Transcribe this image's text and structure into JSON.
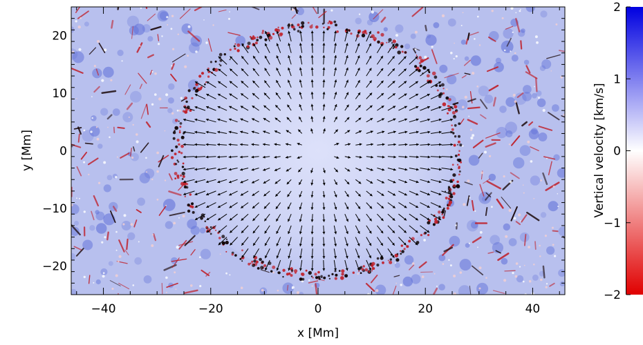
{
  "chart_data": {
    "type": "heatmap",
    "title": "",
    "xlabel": "x [Mm]",
    "ylabel": "y [Mm]",
    "xlim": [
      -46,
      46
    ],
    "ylim": [
      -25,
      25
    ],
    "x_ticks": [
      -40,
      -20,
      0,
      20,
      40
    ],
    "y_ticks": [
      -20,
      -10,
      0,
      10,
      20
    ],
    "x_tick_labels": [
      "−40",
      "−20",
      "0",
      "20",
      "40"
    ],
    "y_tick_labels": [
      "−20",
      "−10",
      "0",
      "10",
      "20"
    ],
    "colorbar": {
      "label": "Vertical velocity [km/s]",
      "range": [
        -2,
        2
      ],
      "ticks": [
        2,
        1,
        0,
        -1,
        -2
      ],
      "tick_labels": [
        "2",
        "1",
        "0",
        "−1",
        "−2"
      ],
      "colormap": [
        "#e00000",
        "#ffffff",
        "#0000e0"
      ]
    },
    "ring": {
      "center": [
        0,
        0
      ],
      "radius_x": 26,
      "radius_y": 21.5
    },
    "vectors": {
      "pattern": "radial outward from center",
      "color": "#000000"
    },
    "colors": {
      "background": "#b8c0ee",
      "downflow": "#c0202a",
      "upflow": "#6070d8",
      "interior": "#d0d6f6"
    }
  }
}
